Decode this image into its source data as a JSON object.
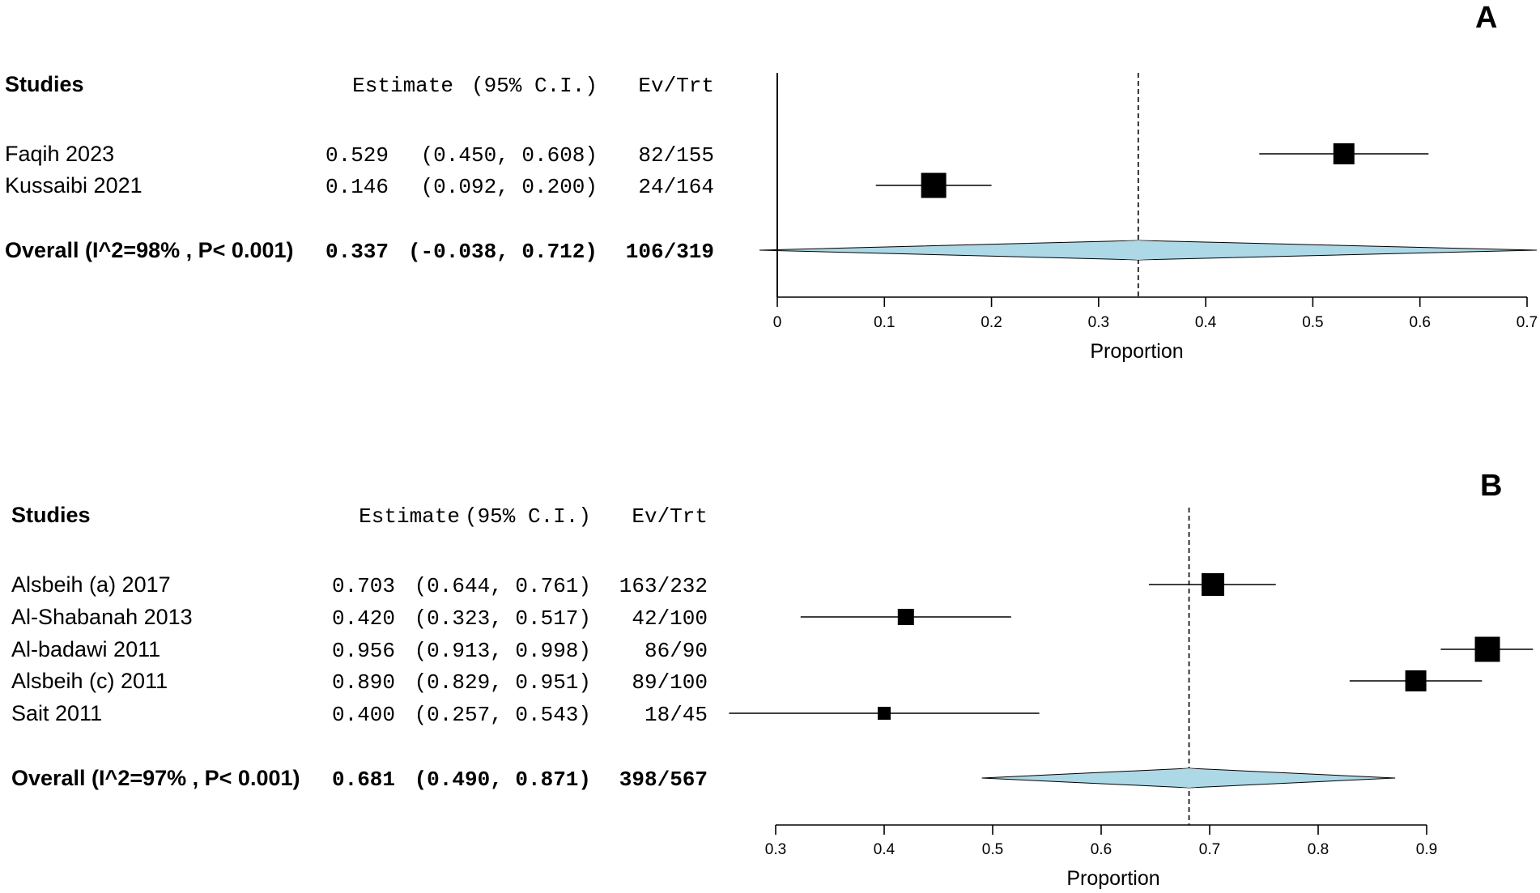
{
  "colors": {
    "diamond_fill": "#add8e6",
    "ink": "#000000"
  },
  "chart_data": [
    {
      "type": "forest",
      "panel": "A",
      "xlabel": "Proportion",
      "xlim": [
        0,
        0.7
      ],
      "ticks": [
        "0",
        "0.1",
        "0.2",
        "0.3",
        "0.4",
        "0.5",
        "0.6",
        "0.7"
      ],
      "columns": {
        "studies": "Studies",
        "estimate": "Estimate",
        "ci": "(95% C.I.)",
        "events": "Ev/Trt"
      },
      "studies": [
        {
          "name": "Faqih 2023",
          "estimate": 0.529,
          "lower": 0.45,
          "upper": 0.608,
          "estimate_text": "0.529",
          "ci_text": "(0.450, 0.608)",
          "events": "82/155"
        },
        {
          "name": "Kussaibi 2021",
          "estimate": 0.146,
          "lower": 0.092,
          "upper": 0.2,
          "estimate_text": "0.146",
          "ci_text": "(0.092, 0.200)",
          "events": "24/164"
        }
      ],
      "overall": {
        "label": "Overall (I^2=98% , P< 0.001)",
        "estimate": 0.337,
        "lower": -0.038,
        "upper": 0.712,
        "estimate_text": "0.337",
        "ci_text": "(-0.038, 0.712)",
        "events": "106/319"
      }
    },
    {
      "type": "forest",
      "panel": "B",
      "xlabel": "Proportion",
      "xlim": [
        0.3,
        0.9
      ],
      "ticks": [
        "0.3",
        "0.4",
        "0.5",
        "0.6",
        "0.7",
        "0.8",
        "0.9"
      ],
      "columns": {
        "studies": "Studies",
        "estimate": "Estimate",
        "ci": "(95% C.I.)",
        "events": "Ev/Trt"
      },
      "studies": [
        {
          "name": "Alsbeih (a) 2017",
          "estimate": 0.703,
          "lower": 0.644,
          "upper": 0.761,
          "estimate_text": "0.703",
          "ci_text": "(0.644, 0.761)",
          "events": "163/232"
        },
        {
          "name": "Al-Shabanah 2013",
          "estimate": 0.42,
          "lower": 0.323,
          "upper": 0.517,
          "estimate_text": "0.420",
          "ci_text": "(0.323, 0.517)",
          "events": "42/100"
        },
        {
          "name": "Al-badawi 2011",
          "estimate": 0.956,
          "lower": 0.913,
          "upper": 0.998,
          "estimate_text": "0.956",
          "ci_text": "(0.913, 0.998)",
          "events": "86/90"
        },
        {
          "name": "Alsbeih (c) 2011",
          "estimate": 0.89,
          "lower": 0.829,
          "upper": 0.951,
          "estimate_text": "0.890",
          "ci_text": "(0.829, 0.951)",
          "events": "89/100"
        },
        {
          "name": "Sait 2011",
          "estimate": 0.4,
          "lower": 0.257,
          "upper": 0.543,
          "estimate_text": "0.400",
          "ci_text": "(0.257, 0.543)",
          "events": "18/45"
        }
      ],
      "overall": {
        "label": "Overall (I^2=97% , P< 0.001)",
        "estimate": 0.681,
        "lower": 0.49,
        "upper": 0.871,
        "estimate_text": "0.681",
        "ci_text": "(0.490, 0.871)",
        "events": "398/567"
      }
    }
  ]
}
